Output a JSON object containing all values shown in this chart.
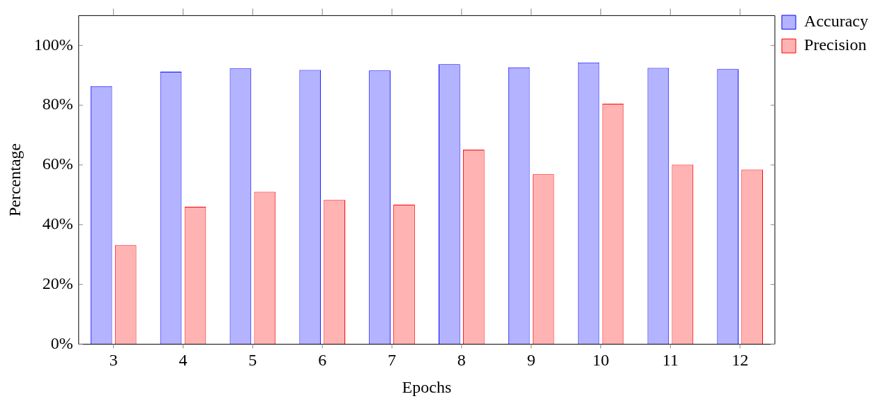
{
  "chart_data": {
    "type": "bar",
    "xlabel": "Epochs",
    "ylabel": "Percentage",
    "categories": [
      "3",
      "4",
      "5",
      "6",
      "7",
      "8",
      "9",
      "10",
      "11",
      "12"
    ],
    "series": [
      {
        "name": "Accuracy",
        "color": "#b3b3ff",
        "values": [
          86.4,
          91.2,
          92.3,
          91.8,
          91.6,
          93.7,
          92.7,
          94.3,
          92.5,
          92.1
        ]
      },
      {
        "name": "Precision",
        "color": "#ffb3b3",
        "values": [
          33.1,
          46.0,
          51.0,
          48.3,
          46.7,
          65.1,
          56.9,
          80.5,
          60.1,
          58.5
        ]
      }
    ],
    "ylim": [
      0,
      110
    ],
    "yticks": [
      {
        "value": 0,
        "label": "0%"
      },
      {
        "value": 20,
        "label": "20%"
      },
      {
        "value": 40,
        "label": "40%"
      },
      {
        "value": 60,
        "label": "60%"
      },
      {
        "value": 80,
        "label": "80%"
      },
      {
        "value": 100,
        "label": "100%"
      }
    ],
    "grid": false,
    "legend": "top right"
  }
}
